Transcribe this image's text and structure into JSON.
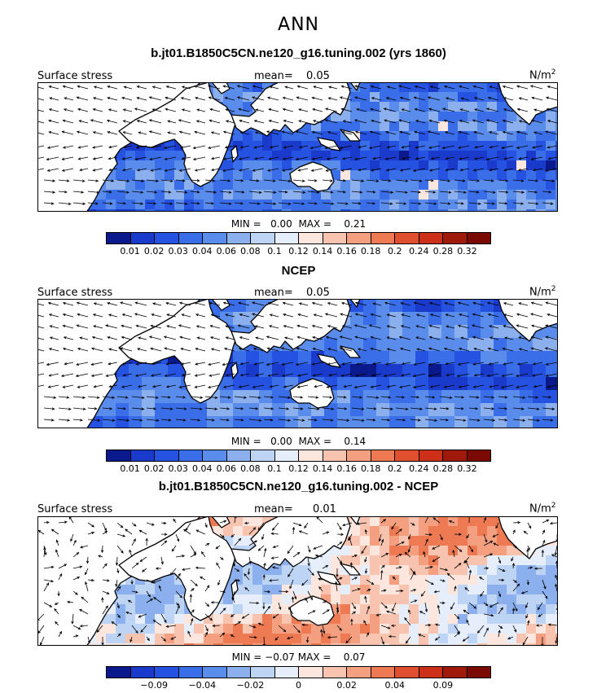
{
  "main_title": "ANN",
  "panels": [
    {
      "title": "b.jt01.B1850C5CN.ne120_g16.tuning.002 (yrs 1860)",
      "left_label": "Surface stress",
      "mean_label": "mean=",
      "mean_value": "0.05",
      "units": "N/m",
      "units_sup": "2",
      "min_label": "MIN =",
      "min_value": "0.00",
      "max_label": "MAX =",
      "max_value": "0.21",
      "palette": [
        "#0a1a8c",
        "#1a3acc",
        "#2552e0",
        "#3a6ee8",
        "#5a8cec",
        "#8cb0ee",
        "#bed4f4",
        "#e6eefc",
        "#fce6de",
        "#f8c4b0",
        "#f4a080",
        "#ee7a54",
        "#e05030",
        "#cc3018",
        "#a01a0a",
        "#7a0a00"
      ],
      "ticks": [
        "0.01",
        "0.02",
        "0.03",
        "0.04",
        "0.06",
        "0.08",
        "0.1",
        "0.12",
        "0.14",
        "0.16",
        "0.18",
        "0.2",
        "0.24",
        "0.28",
        "0.32"
      ]
    },
    {
      "title": "NCEP",
      "left_label": "Surface stress",
      "mean_label": "mean=",
      "mean_value": "0.05",
      "units": "N/m",
      "units_sup": "2",
      "min_label": "MIN =",
      "min_value": "0.00",
      "max_label": "MAX =",
      "max_value": "0.14",
      "palette": [
        "#0a1a8c",
        "#1a3acc",
        "#2552e0",
        "#3a6ee8",
        "#5a8cec",
        "#8cb0ee",
        "#bed4f4",
        "#e6eefc",
        "#fce6de",
        "#f8c4b0",
        "#f4a080",
        "#ee7a54",
        "#e05030",
        "#cc3018",
        "#a01a0a",
        "#7a0a00"
      ],
      "ticks": [
        "0.01",
        "0.02",
        "0.03",
        "0.04",
        "0.06",
        "0.08",
        "0.1",
        "0.12",
        "0.14",
        "0.16",
        "0.18",
        "0.2",
        "0.24",
        "0.28",
        "0.32"
      ]
    },
    {
      "title": "b.jt01.B1850C5CN.ne120_g16.tuning.002 - NCEP",
      "left_label": "Surface stress",
      "mean_label": "mean=",
      "mean_value": "0.01",
      "units": "N/m",
      "units_sup": "2",
      "min_label": "MIN =",
      "min_value": "−0.07",
      "max_label": "MAX =",
      "max_value": "0.07",
      "palette": [
        "#0a1a8c",
        "#1a3acc",
        "#2552e0",
        "#3a6ee8",
        "#5a8cec",
        "#8cb0ee",
        "#bed4f4",
        "#e6eefc",
        "#fce6de",
        "#f8c4b0",
        "#f4a080",
        "#ee7a54",
        "#e05030",
        "#cc3018",
        "#a01a0a",
        "#7a0a00"
      ],
      "ticks": [
        "",
        "−0.09",
        "",
        "−0.04",
        "",
        "−0.02",
        "",
        "0",
        "",
        "0.02",
        "",
        "0.04",
        "",
        "0.09",
        ""
      ]
    }
  ]
}
